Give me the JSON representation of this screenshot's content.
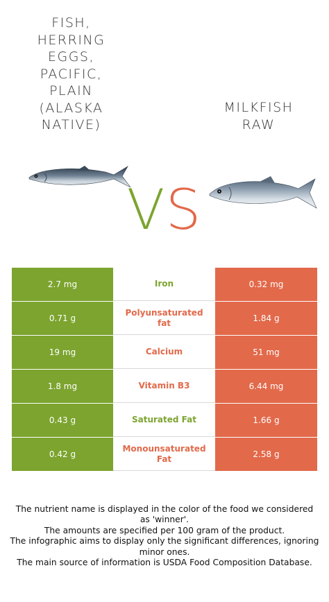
{
  "food_left": {
    "title": "FISH,\nHERRING\nEGGS,\nPACIFIC,\nPLAIN\n(ALASKA\nNATIVE)",
    "color": "#7ca42f",
    "image": "herring-fish-icon"
  },
  "food_right": {
    "title": "MILKFISH\nRAW",
    "color": "#e2694a",
    "image": "milkfish-icon"
  },
  "vs": {
    "v": "V",
    "s": "S"
  },
  "nutrients": [
    {
      "left": "2.7 mg",
      "name": "Iron",
      "right": "0.32 mg",
      "winner": "left",
      "name_color": "#7ca42f"
    },
    {
      "left": "0.71 g",
      "name": "Polyunsaturated fat",
      "right": "1.84 g",
      "winner": "right",
      "name_color": "#e2694a"
    },
    {
      "left": "19 mg",
      "name": "Calcium",
      "right": "51 mg",
      "winner": "right",
      "name_color": "#e2694a"
    },
    {
      "left": "1.8 mg",
      "name": "Vitamin B3",
      "right": "6.44 mg",
      "winner": "right",
      "name_color": "#e2694a"
    },
    {
      "left": "0.43 g",
      "name": "Saturated Fat",
      "right": "1.66 g",
      "winner": "left",
      "name_color": "#7ca42f"
    },
    {
      "left": "0.42 g",
      "name": "Monounsaturated Fat",
      "right": "2.58 g",
      "winner": "right",
      "name_color": "#e2694a"
    }
  ],
  "footnote": [
    "The nutrient name is displayed in the color of the food we considered as 'winner'.",
    "The amounts are specified per 100 gram of the product.",
    "The infographic aims to display only the significant differences, ignoring minor ones.",
    "The main source of information is USDA Food Composition Database."
  ]
}
